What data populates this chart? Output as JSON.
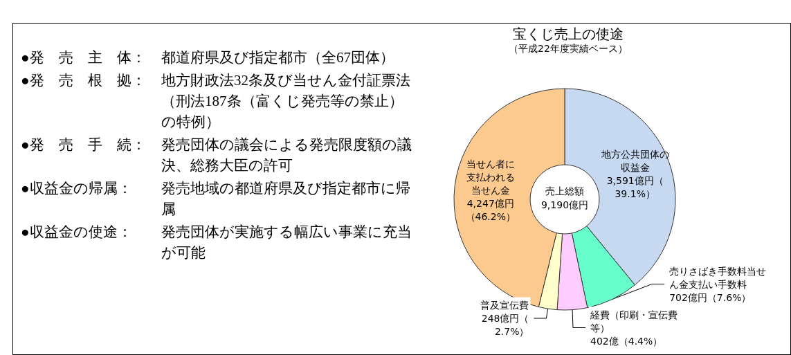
{
  "chart_data": [
    {
      "type": "other",
      "annotations": [
        "●発　売　主　体：都道府県及び指定都市（全67団体）",
        "●発　売　根　拠：地方財政法32条及び当せん金付証票法（刑法187条（富くじ発売等の禁止）の特例）",
        "●発　売　手　続：発売団体の議会による発売限度額の議決、総務大臣の許可",
        "●収益金の帰属：発売地域の都道府県及び指定都市に帰属",
        "●収益金の使途：発売団体が実施する幅広い事業に充当が可能"
      ]
    },
    {
      "type": "donut",
      "title": "宝くじ売上の使途",
      "subtitle": "（平成22年度実績ベース）",
      "categories": [
        "地方公共団体の収益金",
        "売りさばき手数料当せん金支払い手数料",
        "経費（印刷・宣伝費等）",
        "普及宣伝費",
        "当せん者に支払われる当せん金"
      ],
      "values": [
        3591,
        702,
        402,
        248,
        4247
      ],
      "value_labels": [
        "3,591億円（39.1%）",
        "702億円（7.6%）",
        "402億（4.4%）",
        "248億円（2.7%）",
        "4,247億円（46.2%）"
      ],
      "colors": [
        "#c6d9f1",
        "#66ffcc",
        "#ffccff",
        "#ffffcc",
        "#fcc98f"
      ],
      "annotations": [
        "売上総額\n9,190億円"
      ]
    }
  ]
}
